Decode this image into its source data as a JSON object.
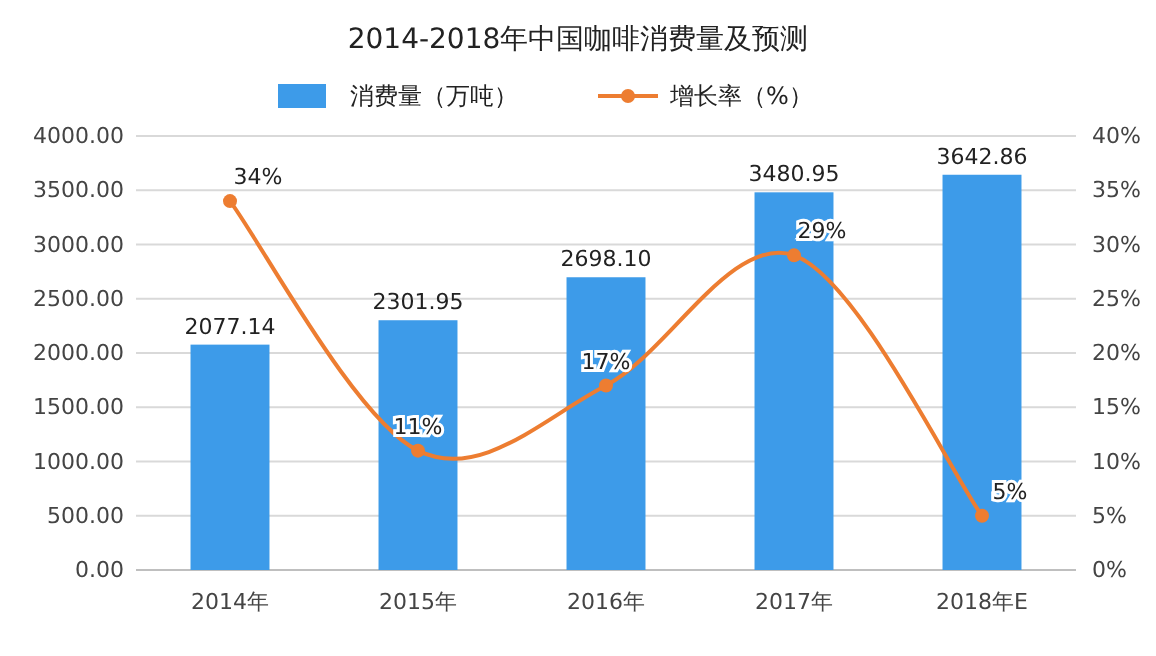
{
  "chart_data": {
    "type": "bar",
    "title": "2014-2018年中国咖啡消费量及预测",
    "categories": [
      "2014年",
      "2015年",
      "2016年",
      "2017年",
      "2018年E"
    ],
    "series": [
      {
        "name": "消费量（万吨）",
        "color": "#3d9be9",
        "values": [
          2077.14,
          2301.95,
          2698.1,
          3480.95,
          3642.86
        ],
        "value_labels": [
          "2077.14",
          "2301.95",
          "2698.10",
          "3480.95",
          "3642.86"
        ]
      },
      {
        "name": "增长率（%）",
        "type": "line",
        "axis": "y2",
        "color": "#ed7d31",
        "values": [
          34,
          11,
          17,
          29,
          5
        ],
        "value_labels": [
          "34%",
          "11%",
          "17%",
          "29%",
          "5%"
        ],
        "marker": "circle"
      }
    ],
    "ylim": [
      0,
      4000
    ],
    "yticks": [
      {
        "value": 0,
        "label": "0.00"
      },
      {
        "value": 500,
        "label": "500.00"
      },
      {
        "value": 1000,
        "label": "1000.00"
      },
      {
        "value": 1500,
        "label": "1500.00"
      },
      {
        "value": 2000,
        "label": "2000.00"
      },
      {
        "value": 2500,
        "label": "2500.00"
      },
      {
        "value": 3000,
        "label": "3000.00"
      },
      {
        "value": 3500,
        "label": "3500.00"
      },
      {
        "value": 4000,
        "label": "4000.00"
      }
    ],
    "y2lim": [
      0,
      40
    ],
    "y2ticks": [
      {
        "value": 0,
        "label": "0%"
      },
      {
        "value": 5,
        "label": "5%"
      },
      {
        "value": 10,
        "label": "10%"
      },
      {
        "value": 15,
        "label": "15%"
      },
      {
        "value": 20,
        "label": "20%"
      },
      {
        "value": 25,
        "label": "25%"
      },
      {
        "value": 30,
        "label": "30%"
      },
      {
        "value": 35,
        "label": "35%"
      },
      {
        "value": 40,
        "label": "40%"
      }
    ],
    "grid": "y",
    "legend": "top"
  }
}
